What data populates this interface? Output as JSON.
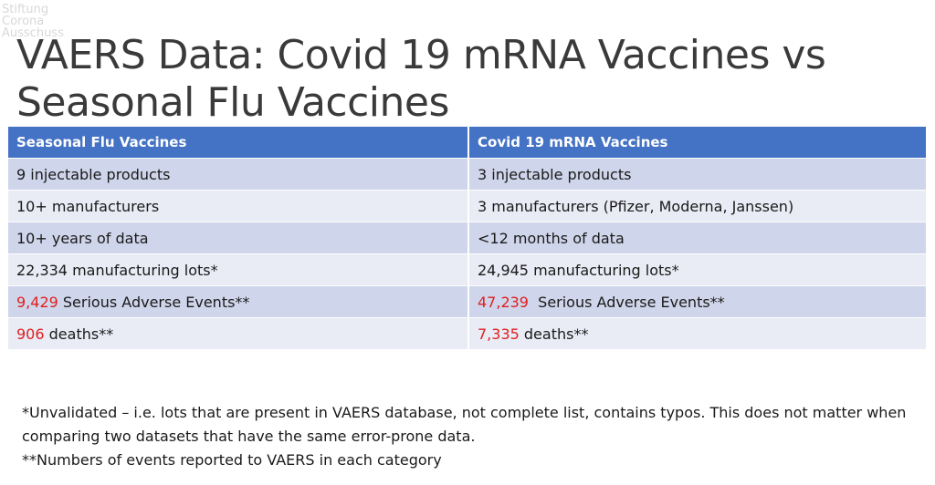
{
  "watermark": {
    "left_lines": [
      "Stiftung",
      "Corona",
      "Ausschuss"
    ]
  },
  "title": "VAERS Data: Covid 19 mRNA Vaccines vs Seasonal Flu Vaccines",
  "table": {
    "headers": [
      "Seasonal Flu Vaccines",
      "Covid 19 mRNA Vaccines"
    ],
    "rows": [
      {
        "left": {
          "highlight": "",
          "text": "9 injectable products"
        },
        "right": {
          "highlight": "",
          "text": "3 injectable products"
        }
      },
      {
        "left": {
          "highlight": "",
          "text": "10+ manufacturers"
        },
        "right": {
          "highlight": "",
          "text": "3 manufacturers (Pfizer, Moderna, Janssen)"
        }
      },
      {
        "left": {
          "highlight": "",
          "text": "10+ years of data"
        },
        "right": {
          "highlight": "",
          "text": "<12 months of data"
        }
      },
      {
        "left": {
          "highlight": "",
          "text": "22,334 manufacturing lots*"
        },
        "right": {
          "highlight": "",
          "text": "24,945 manufacturing lots*"
        }
      },
      {
        "left": {
          "highlight": "9,429",
          "text": " Serious Adverse Events**"
        },
        "right": {
          "highlight": "47,239",
          "text": "  Serious Adverse Events**"
        }
      },
      {
        "left": {
          "highlight": "906",
          "text": " deaths**"
        },
        "right": {
          "highlight": "7,335",
          "text": " deaths**"
        }
      }
    ]
  },
  "notes": [
    "*Unvalidated – i.e. lots that are present in VAERS database, not complete list, contains typos. This does not matter when comparing two datasets that have the same error-prone data.",
    "**Numbers of events reported to VAERS in each category"
  ],
  "colors": {
    "header_bg": "#4472c4",
    "row_odd": "#cfd5ea",
    "row_even": "#e9ebf5",
    "highlight": "#e02020",
    "title": "#3a3a3a"
  }
}
